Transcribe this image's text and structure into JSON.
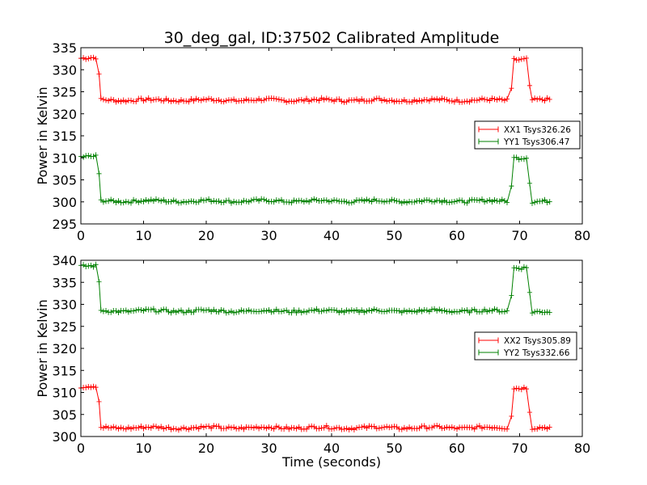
{
  "chart_data": [
    {
      "type": "line",
      "title": "30_deg_gal, ID:37502 Calibrated Amplitude",
      "xlabel": "",
      "ylabel": "Power in Kelvin",
      "xlim": [
        0,
        80
      ],
      "ylim": [
        295,
        335
      ],
      "xticks": [
        "0",
        "10",
        "20",
        "30",
        "40",
        "50",
        "60",
        "70",
        "80"
      ],
      "yticks": [
        "295",
        "300",
        "305",
        "310",
        "315",
        "320",
        "325",
        "330",
        "335"
      ],
      "legend_position": "center-right",
      "grid": false,
      "series": [
        {
          "name": "XX1 Tsys326.26",
          "color": "#ff0000",
          "marker": "+",
          "segments": [
            {
              "x_start": 0,
              "x_end": 2.6,
              "value": 332.6
            },
            {
              "x": 2.9,
              "value": 329.0
            },
            {
              "x_start": 3.2,
              "x_end": 68.3,
              "value": 323.1
            },
            {
              "x": 68.7,
              "value": 325.8
            },
            {
              "x_start": 69.1,
              "x_end": 71.3,
              "value": 332.4
            },
            {
              "x": 71.6,
              "value": 326.4
            },
            {
              "x_start": 72.0,
              "x_end": 75.0,
              "value": 323.1
            }
          ]
        },
        {
          "name": "YY1 Tsys306.47",
          "color": "#008000",
          "marker": "+",
          "segments": [
            {
              "x_start": 0,
              "x_end": 2.6,
              "value": 310.2
            },
            {
              "x": 2.9,
              "value": 306.4
            },
            {
              "x_start": 3.2,
              "x_end": 68.3,
              "value": 300.2
            },
            {
              "x": 68.7,
              "value": 303.6
            },
            {
              "x_start": 69.1,
              "x_end": 71.3,
              "value": 310.1
            },
            {
              "x": 71.6,
              "value": 304.2
            },
            {
              "x_start": 72.0,
              "x_end": 75.0,
              "value": 300.0
            }
          ]
        }
      ]
    },
    {
      "type": "line",
      "title": "",
      "xlabel": "Time (seconds)",
      "ylabel": "Power in Kelvin",
      "xlim": [
        0,
        80
      ],
      "ylim": [
        300,
        340
      ],
      "xticks": [
        "0",
        "10",
        "20",
        "30",
        "40",
        "50",
        "60",
        "70",
        "80"
      ],
      "yticks": [
        "300",
        "305",
        "310",
        "315",
        "320",
        "325",
        "330",
        "335",
        "340"
      ],
      "legend_position": "center-right",
      "grid": false,
      "series": [
        {
          "name": "XX2 Tsys305.89",
          "color": "#ff0000",
          "marker": "+",
          "segments": [
            {
              "x_start": 0,
              "x_end": 2.6,
              "value": 311.3
            },
            {
              "x": 2.9,
              "value": 307.9
            },
            {
              "x_start": 3.2,
              "x_end": 68.3,
              "value": 302.0
            },
            {
              "x": 68.7,
              "value": 304.6
            },
            {
              "x_start": 69.1,
              "x_end": 71.3,
              "value": 311.1
            },
            {
              "x": 71.6,
              "value": 305.5
            },
            {
              "x_start": 72.0,
              "x_end": 75.0,
              "value": 301.9
            }
          ]
        },
        {
          "name": "YY2 Tsys332.66",
          "color": "#008000",
          "marker": "+",
          "segments": [
            {
              "x_start": 0,
              "x_end": 2.6,
              "value": 338.6
            },
            {
              "x": 2.9,
              "value": 335.1
            },
            {
              "x_start": 3.2,
              "x_end": 68.3,
              "value": 328.5
            },
            {
              "x": 68.7,
              "value": 332.0
            },
            {
              "x_start": 69.1,
              "x_end": 71.3,
              "value": 338.4
            },
            {
              "x": 71.6,
              "value": 332.7
            },
            {
              "x_start": 72.0,
              "x_end": 75.0,
              "value": 328.2
            }
          ]
        }
      ]
    }
  ]
}
